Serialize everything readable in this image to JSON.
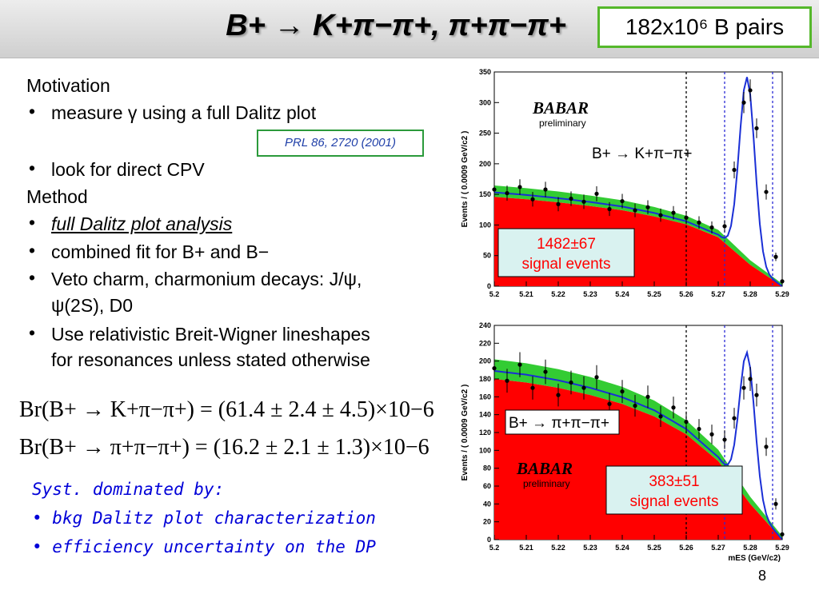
{
  "header": {
    "title": "B+ → K+π−π+, π+π−π+",
    "pairs_box": "182x10⁶ B pairs"
  },
  "left": {
    "motivation_heading": "Motivation",
    "bullet_measure": "measure γ using a full Dalitz plot",
    "reference": "PRL 86, 2720 (2001)",
    "bullet_cpv": "look for direct CPV",
    "method_heading": "Method",
    "bullet_dalitz": "full Dalitz plot analysis",
    "bullet_combined": "combined fit for B+ and B−",
    "bullet_veto_1": "Veto charm, charmonium decays: J/ψ,",
    "bullet_veto_2": "ψ(2S), D0",
    "bullet_bw_1": "Use relativistic Breit-Wigner lineshapes",
    "bullet_bw_2": "for resonances unless stated otherwise",
    "eq1": "Br(B+ → K+π−π+) = (61.4 ± 2.4 ± 4.5)×10−6",
    "eq2": "Br(B+ → π+π−π+) = (16.2 ± 2.1 ± 1.3)×10−6"
  },
  "syst": {
    "heading": "Syst. dominated by:",
    "items": [
      "bkg Dalitz plot characterization",
      "efficiency uncertainty on the DP"
    ]
  },
  "page_number": "8",
  "colors": {
    "signal_fill": "#ff0000",
    "background_band": "#33cc33",
    "fit_curve": "#1a2fd6",
    "box_border": "#55b82b",
    "syst_text": "#0000d8",
    "callout_fill": "#d9f2f0"
  },
  "chart_data": [
    {
      "type": "scatter",
      "title": "B+ → K+π−π+",
      "watermark": "BABAR preliminary",
      "annotation": "1482±67 signal events",
      "xlabel": "",
      "ylabel": "Events / ( 0.0009 GeV/c2 )",
      "xlim": [
        5.2,
        5.29
      ],
      "ylim": [
        0,
        350
      ],
      "x_ticks": [
        "5.2",
        "5.21",
        "5.22",
        "5.23",
        "5.24",
        "5.25",
        "5.26",
        "5.27",
        "5.28",
        "5.29"
      ],
      "y_ticks": [
        "0",
        "50",
        "100",
        "150",
        "200",
        "250",
        "300",
        "350"
      ],
      "vertical_lines": [
        5.26,
        5.272,
        5.287
      ],
      "background_level": [
        146,
        142,
        137,
        131,
        124,
        114,
        101,
        80,
        35,
        0
      ],
      "peak": {
        "mass": 5.279,
        "height": 312
      },
      "points": [
        [
          5.2,
          158
        ],
        [
          5.204,
          152
        ],
        [
          5.208,
          162
        ],
        [
          5.212,
          142
        ],
        [
          5.216,
          158
        ],
        [
          5.22,
          134
        ],
        [
          5.224,
          143
        ],
        [
          5.228,
          138
        ],
        [
          5.232,
          151
        ],
        [
          5.236,
          126
        ],
        [
          5.24,
          139
        ],
        [
          5.244,
          124
        ],
        [
          5.248,
          129
        ],
        [
          5.252,
          116
        ],
        [
          5.256,
          120
        ],
        [
          5.26,
          112
        ],
        [
          5.264,
          104
        ],
        [
          5.268,
          96
        ],
        [
          5.272,
          98
        ],
        [
          5.275,
          190
        ],
        [
          5.278,
          300
        ],
        [
          5.28,
          320
        ],
        [
          5.282,
          258
        ],
        [
          5.285,
          154
        ],
        [
          5.288,
          48
        ],
        [
          5.29,
          8
        ]
      ]
    },
    {
      "type": "scatter",
      "title": "B+ → π+π−π+",
      "watermark": "BABAR preliminary",
      "annotation": "383±51 signal events",
      "xlabel": "mES (GeV/c2)",
      "ylabel": "Events / ( 0.0009 GeV/c2 )",
      "xlim": [
        5.2,
        5.29
      ],
      "ylim": [
        0,
        240
      ],
      "x_ticks": [
        "5.2",
        "5.21",
        "5.22",
        "5.23",
        "5.24",
        "5.25",
        "5.26",
        "5.27",
        "5.28",
        "5.29"
      ],
      "y_ticks": [
        "0",
        "20",
        "40",
        "60",
        "80",
        "100",
        "120",
        "140",
        "160",
        "180",
        "200",
        "220",
        "240"
      ],
      "vertical_lines": [
        5.26,
        5.272,
        5.287
      ],
      "background_level": [
        180,
        176,
        170,
        162,
        152,
        138,
        118,
        88,
        40,
        0
      ],
      "peak": {
        "mass": 5.279,
        "height": 176
      },
      "points": [
        [
          5.2,
          192
        ],
        [
          5.204,
          178
        ],
        [
          5.208,
          196
        ],
        [
          5.212,
          170
        ],
        [
          5.216,
          188
        ],
        [
          5.22,
          162
        ],
        [
          5.224,
          176
        ],
        [
          5.228,
          170
        ],
        [
          5.232,
          182
        ],
        [
          5.236,
          152
        ],
        [
          5.24,
          166
        ],
        [
          5.244,
          150
        ],
        [
          5.248,
          160
        ],
        [
          5.252,
          138
        ],
        [
          5.256,
          148
        ],
        [
          5.26,
          132
        ],
        [
          5.264,
          124
        ],
        [
          5.268,
          118
        ],
        [
          5.272,
          112
        ],
        [
          5.275,
          136
        ],
        [
          5.278,
          170
        ],
        [
          5.28,
          180
        ],
        [
          5.282,
          162
        ],
        [
          5.285,
          104
        ],
        [
          5.288,
          40
        ],
        [
          5.29,
          6
        ]
      ]
    }
  ]
}
